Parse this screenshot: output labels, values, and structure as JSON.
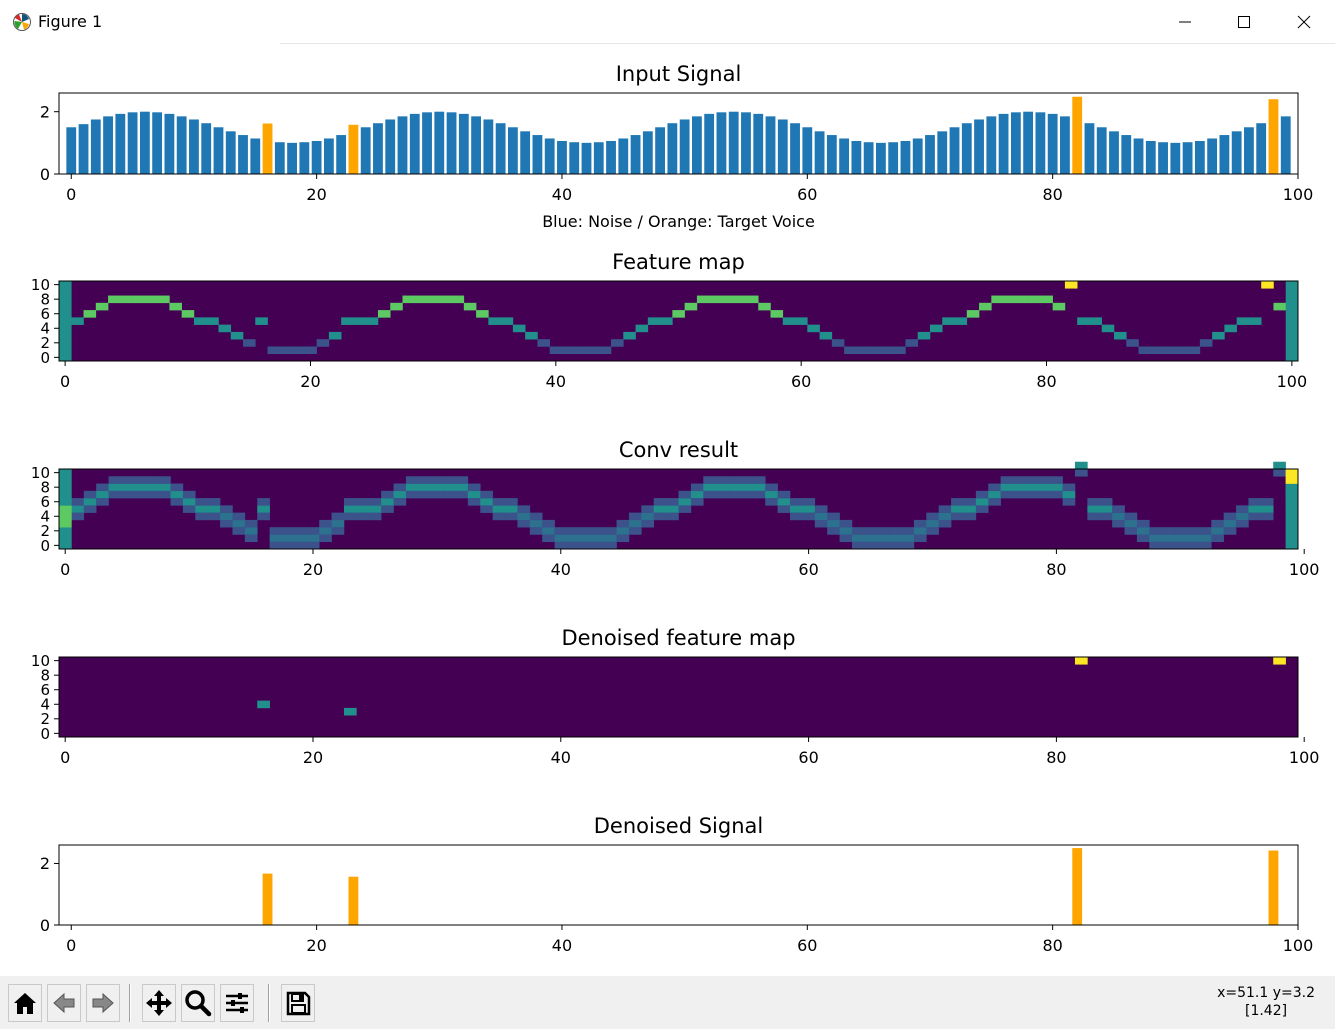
{
  "window": {
    "title": "Figure 1",
    "icon": "matplotlib-logo-icon",
    "controls": [
      "minimize-icon",
      "maximize-icon",
      "close-icon"
    ]
  },
  "colors": {
    "noise": "#1f77b4",
    "target": "#ffa500",
    "viridis_dark": "#440154",
    "viridis_blue": "#3b528b",
    "viridis_teal": "#21908d",
    "viridis_green": "#5dc963",
    "viridis_yellow": "#fde725"
  },
  "chart_data": [
    {
      "type": "bar",
      "title": "Input Signal",
      "xlabel": "Blue: Noise / Orange: Target Voice",
      "ylabel": "",
      "xlim": [
        -1,
        100
      ],
      "ylim": [
        0,
        2.6
      ],
      "xticks": [
        "0",
        "20",
        "40",
        "60",
        "80",
        "100"
      ],
      "yticks": [
        "0",
        "2"
      ],
      "series": [
        {
          "name": "Noise",
          "color": "#1f77b4",
          "values": [
            1.5,
            1.6,
            1.75,
            1.85,
            1.93,
            1.98,
            2.0,
            1.98,
            1.93,
            1.85,
            1.75,
            1.63,
            1.5,
            1.37,
            1.25,
            1.14,
            1.06,
            1.02,
            1.0,
            1.02,
            1.06,
            1.14,
            1.25,
            1.37,
            1.5,
            1.63,
            1.75,
            1.85,
            1.93,
            1.98,
            2.0,
            1.98,
            1.93,
            1.85,
            1.75,
            1.63,
            1.5,
            1.37,
            1.25,
            1.14,
            1.06,
            1.02,
            1.0,
            1.02,
            1.06,
            1.14,
            1.25,
            1.37,
            1.5,
            1.63,
            1.75,
            1.85,
            1.93,
            1.98,
            2.0,
            1.98,
            1.93,
            1.85,
            1.75,
            1.63,
            1.5,
            1.37,
            1.25,
            1.14,
            1.06,
            1.02,
            1.0,
            1.02,
            1.06,
            1.14,
            1.25,
            1.37,
            1.5,
            1.63,
            1.75,
            1.85,
            1.93,
            1.98,
            2.0,
            1.98,
            1.93,
            1.85,
            1.75,
            1.63,
            1.5,
            1.37,
            1.25,
            1.14,
            1.06,
            1.02,
            1.0,
            1.02,
            1.06,
            1.14,
            1.25,
            1.37,
            1.5,
            1.63,
            1.75,
            1.85
          ]
        },
        {
          "name": "Target Voice",
          "color": "#ffa500",
          "points": [
            {
              "x": 16,
              "y": 1.62
            },
            {
              "x": 23,
              "y": 1.58
            },
            {
              "x": 82,
              "y": 2.48
            },
            {
              "x": 98,
              "y": 2.4
            }
          ]
        }
      ]
    },
    {
      "type": "heatmap",
      "title": "Feature map",
      "xticks": [
        "0",
        "20",
        "40",
        "60",
        "80",
        "100"
      ],
      "yticks": [
        "0",
        "2",
        "4",
        "6",
        "8",
        "10"
      ],
      "xlim": [
        -0.5,
        100.5
      ],
      "ylim": [
        -0.5,
        10.5
      ],
      "columns": 101,
      "rows": 11
    },
    {
      "type": "heatmap",
      "title": "Conv result",
      "xticks": [
        "0",
        "20",
        "40",
        "60",
        "80",
        "100"
      ],
      "yticks": [
        "0",
        "2",
        "4",
        "6",
        "8",
        "10"
      ],
      "xlim": [
        -0.5,
        99.5
      ],
      "ylim": [
        -0.5,
        10.5
      ],
      "columns": 100,
      "rows": 11
    },
    {
      "type": "heatmap",
      "title": "Denoised feature map",
      "xticks": [
        "0",
        "20",
        "40",
        "60",
        "80",
        "100"
      ],
      "yticks": [
        "0",
        "2",
        "4",
        "6",
        "8",
        "10"
      ],
      "xlim": [
        -0.5,
        99.5
      ],
      "ylim": [
        -0.5,
        10.5
      ],
      "columns": 100,
      "rows": 11,
      "cells": [
        {
          "x": 16,
          "y": 4
        },
        {
          "x": 23,
          "y": 3
        },
        {
          "x": 82,
          "y": 10
        },
        {
          "x": 98,
          "y": 10
        }
      ]
    },
    {
      "type": "bar",
      "title": "Denoised Signal",
      "xlabel": "",
      "ylabel": "",
      "xlim": [
        -1,
        100
      ],
      "ylim": [
        0,
        2.6
      ],
      "xticks": [
        "0",
        "20",
        "40",
        "60",
        "80",
        "100"
      ],
      "yticks": [
        "0",
        "2"
      ],
      "series": [
        {
          "name": "Target Voice",
          "color": "#ffa500",
          "points": [
            {
              "x": 16,
              "y": 1.67
            },
            {
              "x": 23,
              "y": 1.57
            },
            {
              "x": 82,
              "y": 2.5
            },
            {
              "x": 98,
              "y": 2.42
            }
          ]
        }
      ]
    }
  ],
  "toolbar": {
    "buttons": [
      "home-icon",
      "back-arrow-icon",
      "forward-arrow-icon",
      "pan-icon",
      "zoom-icon",
      "configure-subplots-icon",
      "save-icon"
    ],
    "coords_line1": "x=51.1 y=3.2",
    "coords_line2": "[1.42]"
  }
}
